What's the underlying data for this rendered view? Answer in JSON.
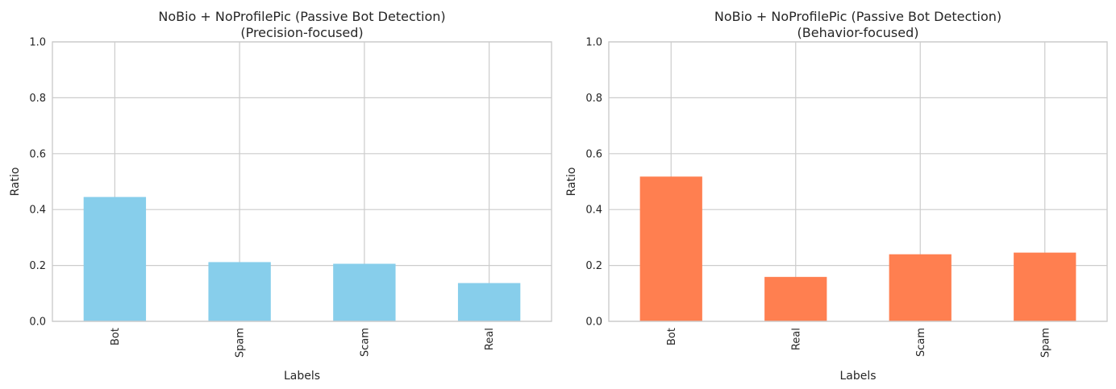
{
  "chart_data": [
    {
      "type": "bar",
      "title_line1": "NoBio + NoProfilePic (Passive Bot Detection)",
      "title_line2": "(Precision-focused)",
      "xlabel": "Labels",
      "ylabel": "Ratio",
      "categories": [
        "Bot",
        "Spam",
        "Scam",
        "Real"
      ],
      "values": [
        0.445,
        0.212,
        0.206,
        0.137
      ],
      "ylim": [
        0,
        1
      ],
      "yticks": [
        "0.0",
        "0.2",
        "0.4",
        "0.6",
        "0.8",
        "1.0"
      ],
      "color": "#87ceeb",
      "grid": true
    },
    {
      "type": "bar",
      "title_line1": "NoBio + NoProfilePic (Passive Bot Detection)",
      "title_line2": "(Behavior-focused)",
      "xlabel": "Labels",
      "ylabel": "Ratio",
      "categories": [
        "Bot",
        "Real",
        "Scam",
        "Spam"
      ],
      "values": [
        0.518,
        0.159,
        0.24,
        0.246
      ],
      "ylim": [
        0,
        1
      ],
      "yticks": [
        "0.0",
        "0.2",
        "0.4",
        "0.6",
        "0.8",
        "1.0"
      ],
      "color": "#ff7f50",
      "grid": true
    }
  ]
}
